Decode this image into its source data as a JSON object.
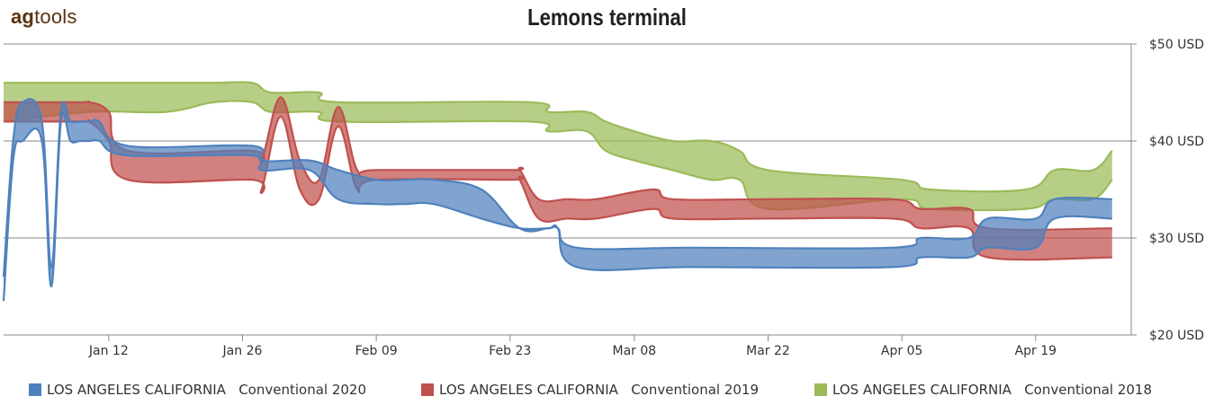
{
  "brand": {
    "logo_text_part1": "ag",
    "logo_text_part2": "tools"
  },
  "chart_data": {
    "type": "area",
    "title": "Lemons terminal",
    "x_tick_labels": [
      "Jan 12",
      "Jan 26",
      "Feb 09",
      "Feb 23",
      "Mar 08",
      "Mar 22",
      "Apr 05",
      "Apr 19"
    ],
    "y_tick_labels": [
      "$50 USD",
      "$40 USD",
      "$30 USD",
      "$20 USD"
    ],
    "y_ticks": [
      50,
      40,
      30,
      20
    ],
    "ylim": [
      20,
      50
    ],
    "xlim": [
      "Jan 01",
      "May 01"
    ],
    "x_ticks": [
      "Jan 12",
      "Jan 26",
      "Feb 09",
      "Feb 23",
      "Mar 08",
      "Mar 22",
      "Apr 05",
      "Apr 19"
    ],
    "grid": "horizontal",
    "legend_position": "bottom",
    "series": [
      {
        "name": "LOS ANGELES CALIFORNIA   Conventional 2020",
        "color": "#4f81bd",
        "x": [
          "Jan 01",
          "Jan 02",
          "Jan 03",
          "Jan 05",
          "Jan 06",
          "Jan 07",
          "Jan 08",
          "Jan 09",
          "Jan 10",
          "Jan 11",
          "Jan 14",
          "Jan 27",
          "Jan 28",
          "Feb 02",
          "Feb 05",
          "Feb 09",
          "Feb 12",
          "Feb 15",
          "Feb 20",
          "Feb 24",
          "Feb 27",
          "Feb 28",
          "Mar 02",
          "Mar 14",
          "Apr 04",
          "Apr 07",
          "Apr 12",
          "Apr 14",
          "Apr 19",
          "Apr 21",
          "Apr 27"
        ],
        "high": [
          26,
          40,
          44,
          42,
          27,
          43,
          42,
          42,
          42,
          42,
          39.5,
          39.5,
          38,
          38,
          37,
          36,
          36,
          36,
          35,
          31,
          31,
          31,
          29,
          29,
          29,
          30,
          30,
          32,
          32,
          34,
          34
        ],
        "low": [
          23.5,
          38,
          40,
          40,
          25,
          42,
          40,
          40,
          40,
          40,
          38.5,
          38.5,
          37,
          37,
          34,
          33.5,
          33.5,
          33.5,
          32,
          31,
          31,
          31,
          27,
          27,
          27,
          28,
          28,
          29,
          29,
          32,
          32
        ]
      },
      {
        "name": "LOS ANGELES CALIFORNIA   Conventional 2019",
        "color": "#c0504d",
        "x": [
          "Jan 01",
          "Jan 09",
          "Jan 10",
          "Jan 12",
          "Jan 14",
          "Jan 27",
          "Jan 28",
          "Jan 30",
          "Feb 01",
          "Feb 03",
          "Feb 05",
          "Feb 07",
          "Feb 09",
          "Feb 23",
          "Feb 24",
          "Feb 26",
          "Mar 01",
          "Mar 04",
          "Mar 10",
          "Mar 12",
          "Mar 22",
          "Apr 04",
          "Apr 07",
          "Apr 12",
          "Apr 14",
          "Apr 27"
        ],
        "high": [
          44,
          44,
          44,
          43,
          39,
          39,
          38,
          44.5,
          38,
          36,
          43.5,
          37,
          37,
          37,
          37,
          34,
          34,
          34,
          35,
          34,
          34,
          34,
          33,
          33,
          31,
          31
        ],
        "low": [
          42,
          42,
          42,
          40,
          36,
          36,
          35,
          42.5,
          35,
          34,
          41.5,
          35,
          36,
          36,
          36,
          32,
          32,
          32,
          33,
          32,
          32,
          32,
          31,
          31,
          28,
          28
        ]
      },
      {
        "name": "LOS ANGELES CALIFORNIA   Conventional 2018",
        "color": "#9bbb59",
        "x": [
          "Jan 01",
          "Jan 10",
          "Jan 18",
          "Jan 23",
          "Jan 27",
          "Jan 29",
          "Feb 03",
          "Feb 05",
          "Feb 25",
          "Feb 27",
          "Mar 03",
          "Mar 05",
          "Mar 08",
          "Mar 12",
          "Mar 16",
          "Mar 19",
          "Mar 22",
          "Apr 05",
          "Apr 08",
          "Apr 18",
          "Apr 21",
          "Apr 25",
          "Apr 27"
        ],
        "high": [
          46,
          46,
          46,
          46,
          46,
          45,
          45,
          44,
          44,
          43,
          43,
          42,
          41,
          40,
          40,
          39,
          37,
          36,
          35,
          35,
          37,
          37,
          39
        ],
        "low": [
          42,
          43,
          43,
          44,
          44,
          43,
          43,
          42,
          42,
          41,
          41,
          39,
          38,
          37,
          36,
          36,
          33,
          34,
          33,
          33,
          34,
          34,
          36
        ]
      }
    ]
  },
  "legend": [
    {
      "label": "LOS ANGELES CALIFORNIA   Conventional 2020",
      "color": "#4f81bd"
    },
    {
      "label": "LOS ANGELES CALIFORNIA   Conventional 2019",
      "color": "#c0504d"
    },
    {
      "label": "LOS ANGELES CALIFORNIA   Conventional 2018",
      "color": "#9bbb59"
    }
  ]
}
